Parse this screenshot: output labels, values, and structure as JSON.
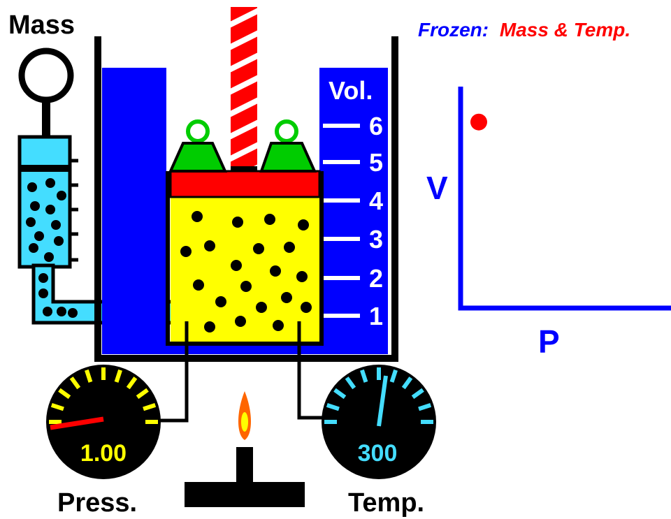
{
  "labels": {
    "mass": "Mass",
    "volume": "Vol.",
    "pressure": "Press.",
    "temperature": "Temp.",
    "frozen_prefix": "Frozen:",
    "frozen_vars": "Mass & Temp.",
    "axis_v": "V",
    "axis_p": "P"
  },
  "gauges": {
    "pressure_value": "1.00",
    "temperature_value": "300"
  },
  "volume_scale": [
    "1",
    "2",
    "3",
    "4",
    "5",
    "6"
  ],
  "colors": {
    "water": "#0000ff",
    "gas": "#ffff00",
    "piston": "#ff0000",
    "weights": "#00cc00",
    "reservoir": "#44ddff",
    "frozen_label": "#0000ff",
    "frozen_vars": "#ff0000",
    "graph_axis": "#0000ff",
    "graph_point": "#ff0000",
    "pressure_needle": "#ff0000",
    "temperature_needle": "#44ddff",
    "gauge_text_pressure": "#ffff00",
    "gauge_text_temperature": "#44ddff"
  },
  "chart_data": {
    "type": "scatter",
    "xlabel": "P",
    "ylabel": "V",
    "points": [
      {
        "x": 1.0,
        "y": 4.6
      }
    ],
    "xlim": [
      0,
      7
    ],
    "ylim": [
      0,
      7
    ]
  }
}
